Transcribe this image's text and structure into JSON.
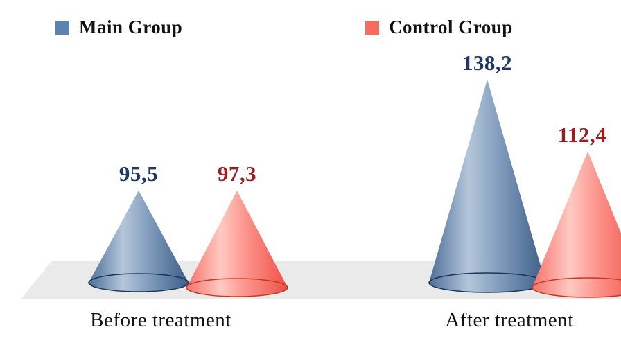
{
  "chart_data": {
    "type": "bar",
    "subtype": "3d-cone",
    "title": "",
    "categories": [
      "Before treatment",
      "After treatment"
    ],
    "series": [
      {
        "name": "Main Group",
        "values": [
          95.5,
          138.2
        ],
        "value_labels": [
          "95,5",
          "138,2"
        ],
        "color": "#5b83ad",
        "label_color": "#1f3864",
        "gradient": [
          "#4d6f97",
          "#b5c6da",
          "#7e9abb",
          "#3c5d86"
        ],
        "base_stroke": "#17365d"
      },
      {
        "name": "Control Group",
        "values": [
          97.3,
          112.4
        ],
        "value_labels": [
          "97,3",
          "112,4"
        ],
        "color": "#f96b62",
        "label_color": "#9e1b1e",
        "gradient": [
          "#f4716a",
          "#ffc9c3",
          "#fb8e86",
          "#ef4f46"
        ],
        "base_stroke": "#c23a22"
      }
    ],
    "ylim": [
      60,
      150
    ],
    "legend_position": "top",
    "grid": false,
    "floor_color": "#eaeaea"
  }
}
